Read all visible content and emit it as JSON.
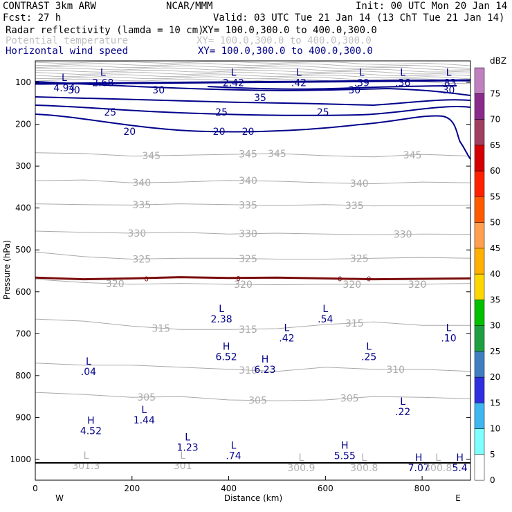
{
  "header": {
    "model": "CONTRAST  3km ARW",
    "org": "NCAR/MMM",
    "init": "Init: 00 UTC Mon 20 Jan 14",
    "fcst": "Fcst:   27 h",
    "valid": "Valid: 03 UTC Tue 21 Jan 14 (13 ChT Tue 21 Jan 14)",
    "fields": [
      {
        "name": "Radar reflectivity (lamda = 10 cm)",
        "xy": "XY= 100.0,300.0 to 400.0,300.0",
        "color": "#000000"
      },
      {
        "name": "Potential temperature",
        "xy": "XY= 100.0,300.0 to 400.0,300.0",
        "color": "#c0c0c0"
      },
      {
        "name": "Horizontal wind speed",
        "xy": "XY= 100.0,300.0 to 400.0,300.0",
        "color": "#00008b"
      }
    ]
  },
  "colors": {
    "theta": "#a9a9a9",
    "wind": "#00008b",
    "zero_line": "#7a0a0a",
    "ground": "#000000"
  },
  "chart_data": {
    "type": "cross-section",
    "xlabel": "Distance (km)",
    "ylabel": "Pressure (hPa)",
    "xlim": [
      0,
      900
    ],
    "ylim": [
      1050,
      50
    ],
    "xticks": [
      0,
      200,
      400,
      600,
      800
    ],
    "yticks": [
      100,
      200,
      300,
      400,
      500,
      600,
      700,
      800,
      900,
      1000
    ],
    "x_end_labels": {
      "left": "W",
      "right": "E"
    },
    "theta_contours": [
      {
        "level": "345",
        "label_x": [
          240,
          440,
          500,
          780
        ],
        "p": [
          268,
          270,
          276,
          274,
          272,
          270,
          275,
          278,
          272,
          276
        ]
      },
      {
        "level": "340",
        "label_x": [
          220,
          440,
          670
        ],
        "p": [
          335,
          333,
          340,
          338,
          334,
          336,
          340,
          342,
          338,
          340
        ]
      },
      {
        "level": "335",
        "label_x": [
          220,
          440,
          660
        ],
        "p": [
          390,
          392,
          393,
          390,
          392,
          394,
          392,
          395,
          394,
          393
        ]
      },
      {
        "level": "330",
        "label_x": [
          210,
          440,
          760
        ],
        "p": [
          455,
          458,
          460,
          458,
          462,
          460,
          462,
          464,
          462,
          463
        ]
      },
      {
        "level": "325",
        "label_x": [
          220,
          440,
          670
        ],
        "p": [
          505,
          516,
          522,
          520,
          520,
          522,
          522,
          520,
          518,
          520
        ]
      },
      {
        "level": "320",
        "label_x": [
          165,
          430,
          655,
          790
        ],
        "p": [
          570,
          578,
          582,
          580,
          582,
          583,
          582,
          582,
          582,
          580
        ]
      },
      {
        "level": "315",
        "label_x": [
          260,
          440,
          660
        ],
        "p": [
          665,
          670,
          682,
          690,
          690,
          688,
          678,
          672,
          680,
          680
        ]
      },
      {
        "level": "310",
        "label_x": [
          440,
          745
        ],
        "p": [
          770,
          775,
          775,
          780,
          785,
          790,
          780,
          785,
          785,
          790
        ]
      },
      {
        "level": "305",
        "label_x": [
          230,
          460,
          650
        ],
        "p": [
          840,
          845,
          852,
          850,
          858,
          860,
          858,
          850,
          852,
          855
        ]
      }
    ],
    "wind_contours": [
      {
        "level": "20",
        "label_x": [
          195,
          380,
          440
        ]
      },
      {
        "level": "25",
        "label_x": [
          155,
          385,
          595
        ]
      },
      {
        "level": "30",
        "label_x": [
          80,
          255,
          660,
          855
        ]
      },
      {
        "level": "35",
        "label_x": [
          465
        ]
      }
    ],
    "zero_contour": {
      "level": "0",
      "label_x": [
        230,
        420,
        630,
        690
      ],
      "p": [
        566,
        570,
        568,
        565,
        567,
        566,
        568,
        570,
        569,
        568
      ]
    },
    "extrema": [
      {
        "kind": "L",
        "value": "4.94",
        "x": 60,
        "p": 100,
        "group": "wind"
      },
      {
        "kind": "L",
        "value": "2.68",
        "x": 140,
        "p": 88,
        "group": "wind"
      },
      {
        "kind": "L",
        "value": "2.42",
        "x": 410,
        "p": 88,
        "group": "wind"
      },
      {
        "kind": "L",
        "value": ".42",
        "x": 545,
        "p": 88,
        "group": "wind"
      },
      {
        "kind": "L",
        "value": ".39",
        "x": 675,
        "p": 88,
        "group": "wind"
      },
      {
        "kind": "L",
        "value": ".36",
        "x": 760,
        "p": 88,
        "group": "wind"
      },
      {
        "kind": "L",
        "value": ".83",
        "x": 855,
        "p": 88,
        "group": "wind"
      },
      {
        "kind": "L",
        "value": "2.38",
        "x": 385,
        "p": 652,
        "group": "wind"
      },
      {
        "kind": "L",
        "value": ".54",
        "x": 600,
        "p": 652,
        "group": "wind"
      },
      {
        "kind": "L",
        "value": ".42",
        "x": 520,
        "p": 697,
        "group": "wind"
      },
      {
        "kind": "L",
        "value": ".10",
        "x": 855,
        "p": 697,
        "group": "wind"
      },
      {
        "kind": "H",
        "value": "6.52",
        "x": 395,
        "p": 742,
        "group": "wind"
      },
      {
        "kind": "L",
        "value": ".25",
        "x": 690,
        "p": 742,
        "group": "wind"
      },
      {
        "kind": "H",
        "value": "6.23",
        "x": 475,
        "p": 772,
        "group": "wind"
      },
      {
        "kind": "L",
        "value": ".04",
        "x": 110,
        "p": 777,
        "group": "wind"
      },
      {
        "kind": "L",
        "value": ".22",
        "x": 760,
        "p": 873,
        "group": "wind"
      },
      {
        "kind": "L",
        "value": "1.44",
        "x": 225,
        "p": 893,
        "group": "wind"
      },
      {
        "kind": "H",
        "value": "4.52",
        "x": 115,
        "p": 918,
        "group": "wind"
      },
      {
        "kind": "L",
        "value": "1.23",
        "x": 315,
        "p": 958,
        "group": "wind"
      },
      {
        "kind": "L",
        "value": ".74",
        "x": 410,
        "p": 978,
        "group": "wind"
      },
      {
        "kind": "H",
        "value": "5.55",
        "x": 640,
        "p": 978,
        "group": "wind"
      },
      {
        "kind": "L",
        "value": "301.3",
        "x": 105,
        "p": 1002,
        "group": "theta"
      },
      {
        "kind": "L",
        "value": "301",
        "x": 305,
        "p": 1002,
        "group": "theta"
      },
      {
        "kind": "L",
        "value": "300.9",
        "x": 550,
        "p": 1007,
        "group": "theta"
      },
      {
        "kind": "L",
        "value": "300.8",
        "x": 680,
        "p": 1007,
        "group": "theta"
      },
      {
        "kind": "H",
        "value": "7.07",
        "x": 793,
        "p": 1007,
        "group": "wind"
      },
      {
        "kind": "L",
        "value": "300.8",
        "x": 833,
        "p": 1007,
        "group": "theta"
      },
      {
        "kind": "H",
        "value": "5.4",
        "x": 878,
        "p": 1007,
        "group": "wind"
      }
    ],
    "colorbar": {
      "unit": "dBZ",
      "levels": [
        "0",
        "5",
        "10",
        "15",
        "20",
        "25",
        "30",
        "35",
        "40",
        "45",
        "50",
        "55",
        "60",
        "65",
        "70",
        "75"
      ],
      "colors": [
        "#ffffff",
        "#7fffff",
        "#3fb6f0",
        "#2f2fe0",
        "#3f7fbf",
        "#1f9f3f",
        "#00c000",
        "#ffd700",
        "#ffb000",
        "#ff9f4f",
        "#ff5a00",
        "#ff2000",
        "#d40000",
        "#a04060",
        "#8a2a8a",
        "#c080c0"
      ]
    }
  }
}
